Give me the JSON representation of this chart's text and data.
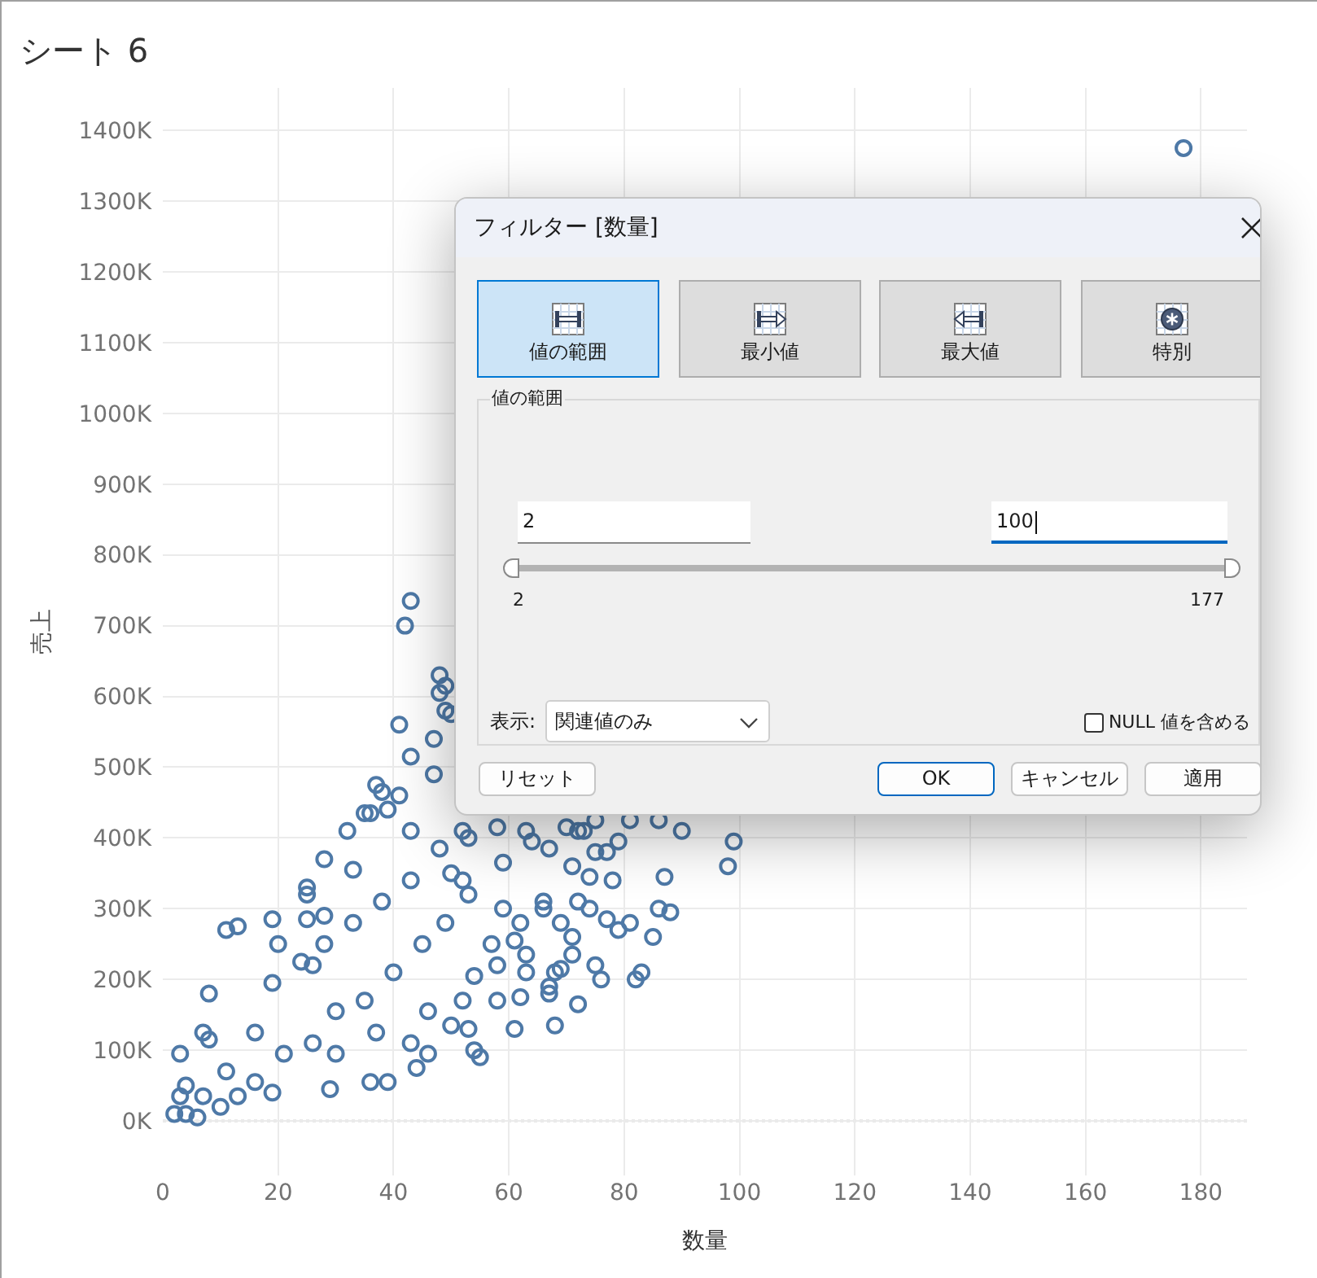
{
  "chart_data": [
    {
      "type": "scatter",
      "title": "シート 6",
      "xlabel": "数量",
      "ylabel": "売上",
      "x": [
        177,
        43,
        42,
        48,
        49,
        48,
        41,
        47,
        43,
        49,
        50,
        47,
        37,
        38,
        41,
        35,
        36,
        39,
        43,
        32,
        28,
        25,
        25,
        19,
        11,
        13,
        20,
        25,
        28,
        8,
        3,
        4,
        2,
        4,
        6,
        7,
        8,
        11,
        16,
        21,
        26,
        16,
        30,
        35,
        40,
        45,
        49,
        19,
        24,
        28,
        33,
        38,
        43,
        50,
        48,
        33,
        26,
        37,
        43,
        46,
        52,
        7,
        10,
        3,
        13,
        19,
        29,
        36,
        39,
        44,
        50,
        46,
        30,
        54,
        99,
        98,
        90,
        87,
        86,
        88,
        85,
        83,
        82,
        81,
        79,
        78,
        75,
        77,
        74,
        71,
        70,
        72,
        73,
        75,
        81,
        86,
        77,
        79,
        75,
        76,
        72,
        68,
        71,
        69,
        68,
        71,
        69,
        72,
        74,
        67,
        67,
        62,
        61,
        54,
        55,
        66,
        66,
        63,
        63,
        58,
        53,
        64,
        67,
        63,
        59,
        58,
        52,
        53,
        52,
        53,
        59,
        62,
        61,
        57,
        58
      ],
      "values": [
        1375,
        735,
        700,
        630,
        615,
        605,
        560,
        540,
        515,
        580,
        575,
        490,
        475,
        465,
        460,
        435,
        435,
        440,
        410,
        410,
        370,
        330,
        320,
        285,
        270,
        275,
        250,
        285,
        290,
        180,
        95,
        50,
        10,
        10,
        5,
        125,
        115,
        70,
        55,
        95,
        110,
        125,
        155,
        170,
        210,
        250,
        280,
        195,
        225,
        250,
        280,
        310,
        340,
        350,
        385,
        355,
        220,
        125,
        110,
        155,
        170,
        35,
        20,
        35,
        35,
        40,
        45,
        55,
        55,
        75,
        135,
        95,
        95,
        205,
        395,
        360,
        410,
        345,
        300,
        295,
        260,
        210,
        200,
        280,
        395,
        340,
        380,
        380,
        345,
        360,
        415,
        410,
        410,
        425,
        425,
        425,
        285,
        270,
        220,
        200,
        165,
        135,
        235,
        215,
        210,
        260,
        280,
        310,
        300,
        190,
        180,
        175,
        130,
        100,
        90,
        310,
        300,
        235,
        210,
        170,
        130,
        395,
        385,
        410,
        365,
        415,
        410,
        400,
        340,
        320,
        300,
        280,
        255,
        250,
        220
      ],
      "color": "#4e79a7",
      "marker": "circle",
      "grid": true,
      "xlim": [
        0,
        188
      ],
      "ylim": [
        -77,
        1460
      ],
      "xticks": [
        0,
        20,
        40,
        60,
        80,
        100,
        120,
        140,
        160,
        180
      ],
      "yticks": [
        {
          "value": 0,
          "label": "0K"
        },
        {
          "value": 100,
          "label": "100K"
        },
        {
          "value": 200,
          "label": "200K"
        },
        {
          "value": 300,
          "label": "300K"
        },
        {
          "value": 400,
          "label": "400K"
        },
        {
          "value": 500,
          "label": "500K"
        },
        {
          "value": 600,
          "label": "600K"
        },
        {
          "value": 700,
          "label": "700K"
        },
        {
          "value": 800,
          "label": "800K"
        },
        {
          "value": 900,
          "label": "900K"
        },
        {
          "value": 1000,
          "label": "1000K"
        },
        {
          "value": 1100,
          "label": "1100K"
        },
        {
          "value": 1200,
          "label": "1200K"
        },
        {
          "value": 1300,
          "label": "1300K"
        },
        {
          "value": 1400,
          "label": "1400K"
        }
      ],
      "ref_lines": [
        {
          "axis": "y",
          "value": 0,
          "color": "#a6a6a6",
          "line_style": "dotted"
        }
      ]
    },
    {
      "type": "other",
      "title": "フィルター [数量]",
      "annotations": [
        "値の範囲",
        "最小値",
        "最大値",
        "特別",
        "値の範囲",
        "2",
        "100",
        "2",
        "177",
        "表示:",
        "関連値のみ",
        "NULL 値を含める",
        "リセット",
        "OK",
        "キャンセル",
        "適用"
      ]
    }
  ]
}
